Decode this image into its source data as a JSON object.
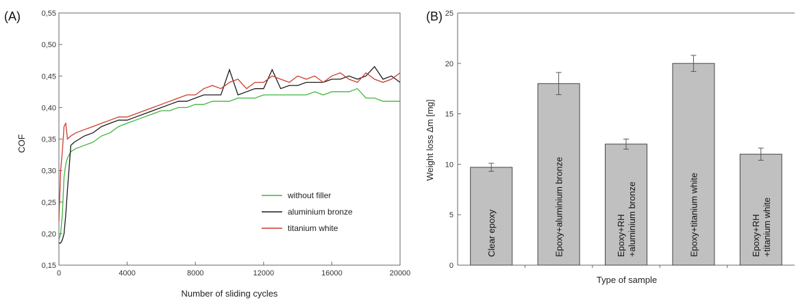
{
  "chart_data": [
    {
      "type": "line",
      "panel_label": "(A)",
      "xlabel": "Number of sliding cycles",
      "ylabel": "COF",
      "xlim": [
        0,
        20000
      ],
      "ylim": [
        0.15,
        0.55
      ],
      "xticks": [
        "0",
        "4000",
        "8000",
        "12000",
        "16000",
        "20000"
      ],
      "yticks": [
        "0,15",
        "0,20",
        "0,25",
        "0,30",
        "0,35",
        "0,40",
        "0,45",
        "0,50",
        "0,55"
      ],
      "legend_position": "bottom-right",
      "series": [
        {
          "name": "without filler",
          "color": "#3cb43c",
          "x": [
            0,
            100,
            200,
            300,
            400,
            500,
            700,
            1000,
            1500,
            2000,
            2500,
            3000,
            3500,
            4000,
            4500,
            5000,
            5500,
            6000,
            6500,
            7000,
            7500,
            8000,
            8500,
            9000,
            9500,
            10000,
            10500,
            11000,
            11500,
            12000,
            12500,
            13000,
            13500,
            14000,
            14500,
            15000,
            15500,
            16000,
            16500,
            17000,
            17500,
            18000,
            18500,
            19000,
            19500,
            20000
          ],
          "y": [
            0.19,
            0.2,
            0.23,
            0.29,
            0.31,
            0.32,
            0.33,
            0.335,
            0.34,
            0.345,
            0.355,
            0.36,
            0.37,
            0.375,
            0.38,
            0.385,
            0.39,
            0.395,
            0.395,
            0.4,
            0.4,
            0.405,
            0.405,
            0.41,
            0.41,
            0.41,
            0.415,
            0.415,
            0.415,
            0.42,
            0.42,
            0.42,
            0.42,
            0.42,
            0.42,
            0.425,
            0.42,
            0.425,
            0.425,
            0.425,
            0.43,
            0.415,
            0.415,
            0.41,
            0.41,
            0.41
          ]
        },
        {
          "name": "aluminium bronze",
          "color": "#1a1a1a",
          "x": [
            0,
            100,
            200,
            300,
            400,
            500,
            700,
            900,
            1200,
            1500,
            2000,
            2500,
            3000,
            3500,
            4000,
            4500,
            5000,
            5500,
            6000,
            6500,
            7000,
            7500,
            8000,
            8500,
            9000,
            9500,
            10000,
            10500,
            11000,
            11500,
            12000,
            12500,
            13000,
            13500,
            14000,
            14500,
            15000,
            15500,
            16000,
            16500,
            17000,
            17500,
            18000,
            18500,
            19000,
            19500,
            20000
          ],
          "y": [
            0.185,
            0.185,
            0.19,
            0.2,
            0.23,
            0.27,
            0.34,
            0.345,
            0.35,
            0.355,
            0.36,
            0.37,
            0.375,
            0.38,
            0.38,
            0.385,
            0.39,
            0.395,
            0.4,
            0.405,
            0.41,
            0.41,
            0.415,
            0.42,
            0.42,
            0.42,
            0.46,
            0.42,
            0.425,
            0.43,
            0.43,
            0.46,
            0.43,
            0.435,
            0.435,
            0.44,
            0.44,
            0.44,
            0.445,
            0.445,
            0.45,
            0.445,
            0.45,
            0.465,
            0.445,
            0.45,
            0.44
          ]
        },
        {
          "name": "titanium white",
          "color": "#cc3a2a",
          "x": [
            0,
            100,
            200,
            300,
            400,
            500,
            700,
            1000,
            1500,
            2000,
            2500,
            3000,
            3500,
            4000,
            4500,
            5000,
            5500,
            6000,
            6500,
            7000,
            7500,
            8000,
            8500,
            9000,
            9500,
            10000,
            10500,
            11000,
            11500,
            12000,
            12500,
            13000,
            13500,
            14000,
            14500,
            15000,
            15500,
            16000,
            16500,
            17000,
            17500,
            18000,
            18500,
            19000,
            19500,
            20000
          ],
          "y": [
            0.22,
            0.3,
            0.33,
            0.37,
            0.375,
            0.35,
            0.355,
            0.36,
            0.365,
            0.37,
            0.375,
            0.38,
            0.385,
            0.385,
            0.39,
            0.395,
            0.4,
            0.405,
            0.41,
            0.415,
            0.42,
            0.42,
            0.43,
            0.435,
            0.43,
            0.44,
            0.445,
            0.43,
            0.44,
            0.44,
            0.45,
            0.445,
            0.44,
            0.45,
            0.445,
            0.45,
            0.44,
            0.45,
            0.455,
            0.445,
            0.44,
            0.455,
            0.445,
            0.44,
            0.445,
            0.455
          ]
        }
      ]
    },
    {
      "type": "bar",
      "panel_label": "(B)",
      "xlabel": "Type of sample",
      "ylabel": "Weight loss Δm [mg]",
      "ylim": [
        0,
        25
      ],
      "yticks": [
        "0",
        "5",
        "10",
        "15",
        "20",
        "25"
      ],
      "bar_color": "#c0c0c0",
      "categories": [
        {
          "lines": [
            "Clear epoxy"
          ]
        },
        {
          "lines": [
            "Epoxy+aluminium bronze"
          ]
        },
        {
          "lines": [
            "Epoxy+RH",
            "+aluminium bronze"
          ]
        },
        {
          "lines": [
            "Epoxy+titanium white"
          ]
        },
        {
          "lines": [
            "Epoxy+RH",
            "+titanium white"
          ]
        }
      ],
      "values": [
        9.7,
        18.0,
        12.0,
        20.0,
        11.0
      ],
      "errors": [
        0.4,
        1.1,
        0.5,
        0.8,
        0.6
      ]
    }
  ]
}
